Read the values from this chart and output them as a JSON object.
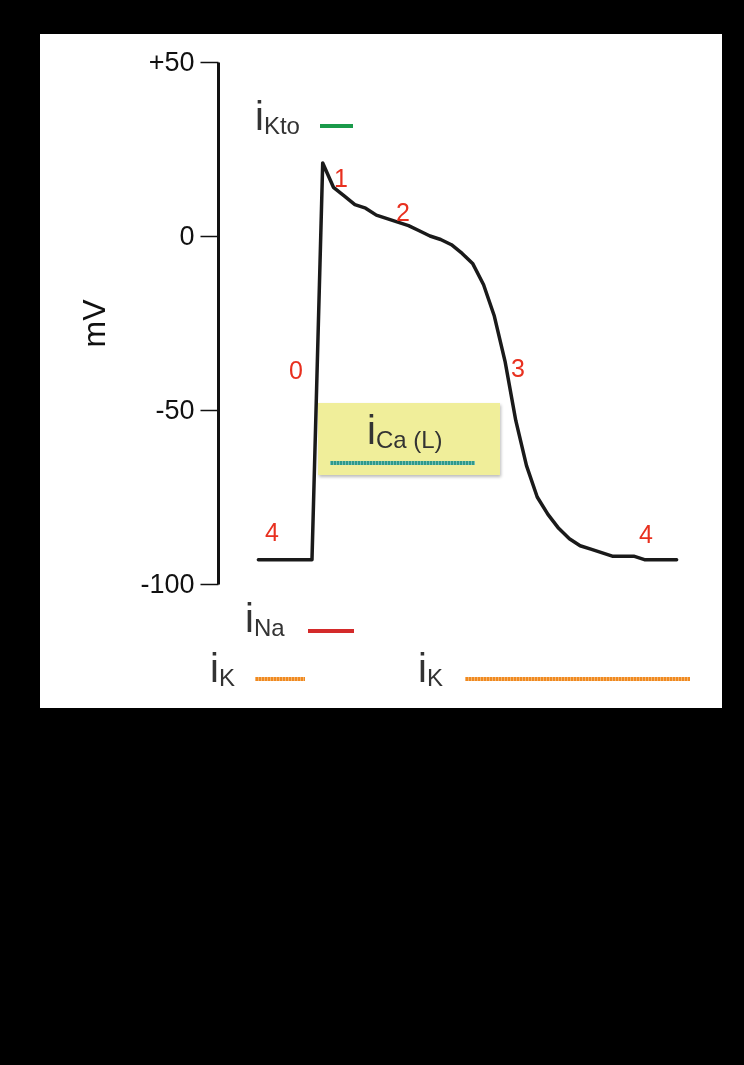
{
  "chart_data": {
    "type": "line",
    "ylabel": "mV",
    "categories": [
      null,
      null,
      null,
      null,
      null,
      null,
      null,
      null,
      null,
      null,
      null,
      null,
      null,
      null,
      null,
      null,
      null,
      null,
      null,
      null,
      null,
      null,
      null,
      null,
      null,
      null,
      null,
      null,
      null,
      null,
      null,
      null,
      null,
      null,
      null,
      null,
      null,
      null,
      null,
      null
    ],
    "series": [
      {
        "color": "#1a1a1a",
        "values": [
          -93,
          -93,
          -93,
          -93,
          -93,
          -93,
          21,
          14,
          11.5,
          9,
          8,
          6,
          5,
          4,
          3,
          1.5,
          0,
          -1,
          -2.5,
          -5,
          -8,
          -14,
          -23,
          -36,
          -53,
          -66,
          -75,
          -80,
          -84,
          -87,
          -89,
          -90,
          -91,
          -92,
          -92,
          -92,
          -93,
          -93,
          -93,
          -93
        ]
      }
    ],
    "ylim": [
      -100,
      50
    ],
    "yticks": [
      {
        "value": 50,
        "label": "+50"
      },
      0,
      -50,
      -100
    ],
    "tick_labels": "y",
    "grid": false,
    "marker": "none",
    "line_style": "solid",
    "annotations": [
      "0",
      "1",
      "2",
      "3",
      "4",
      "4",
      "i$_{Kto}$",
      "i$_{Ca (L)}$",
      "i$_{Na}$",
      "i$_{K}$",
      "i$_{K}$"
    ]
  }
}
